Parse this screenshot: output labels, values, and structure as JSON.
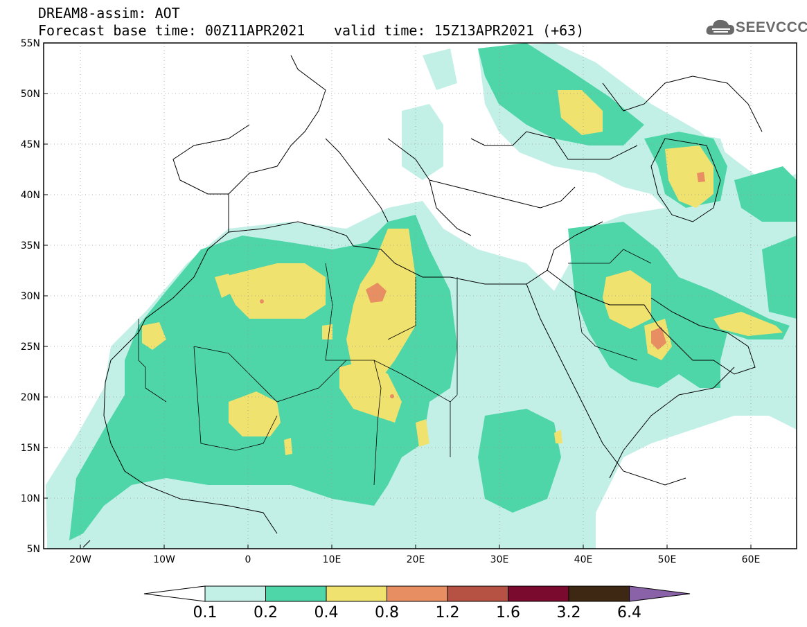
{
  "header": {
    "title_line1": "DREAM8-assim: AOT",
    "title_line2": "Forecast base time: 00Z11APR2021",
    "valid_time": "valid time: 15Z13APR2021 (+63)",
    "logo_text": "SEEVCCC"
  },
  "map": {
    "lat_labels": [
      "55N",
      "50N",
      "45N",
      "40N",
      "35N",
      "30N",
      "25N",
      "20N",
      "15N",
      "10N",
      "5N"
    ],
    "lon_labels": [
      "20W",
      "10W",
      "0",
      "10E",
      "20E",
      "30E",
      "40E",
      "50E",
      "60E"
    ],
    "lon_range": [
      -25,
      65
    ],
    "lat_range": [
      5,
      55
    ],
    "grid": "dotted"
  },
  "colorbar": {
    "labels": [
      "0.1",
      "0.2",
      "0.4",
      "0.8",
      "1.2",
      "1.6",
      "3.2",
      "6.4"
    ],
    "colors": [
      "#ffffff",
      "#c3f0e6",
      "#4ed6a8",
      "#f0e26e",
      "#e88e63",
      "#b65244",
      "#7a0a2e",
      "#3e2814",
      "#8a62a8"
    ]
  }
}
